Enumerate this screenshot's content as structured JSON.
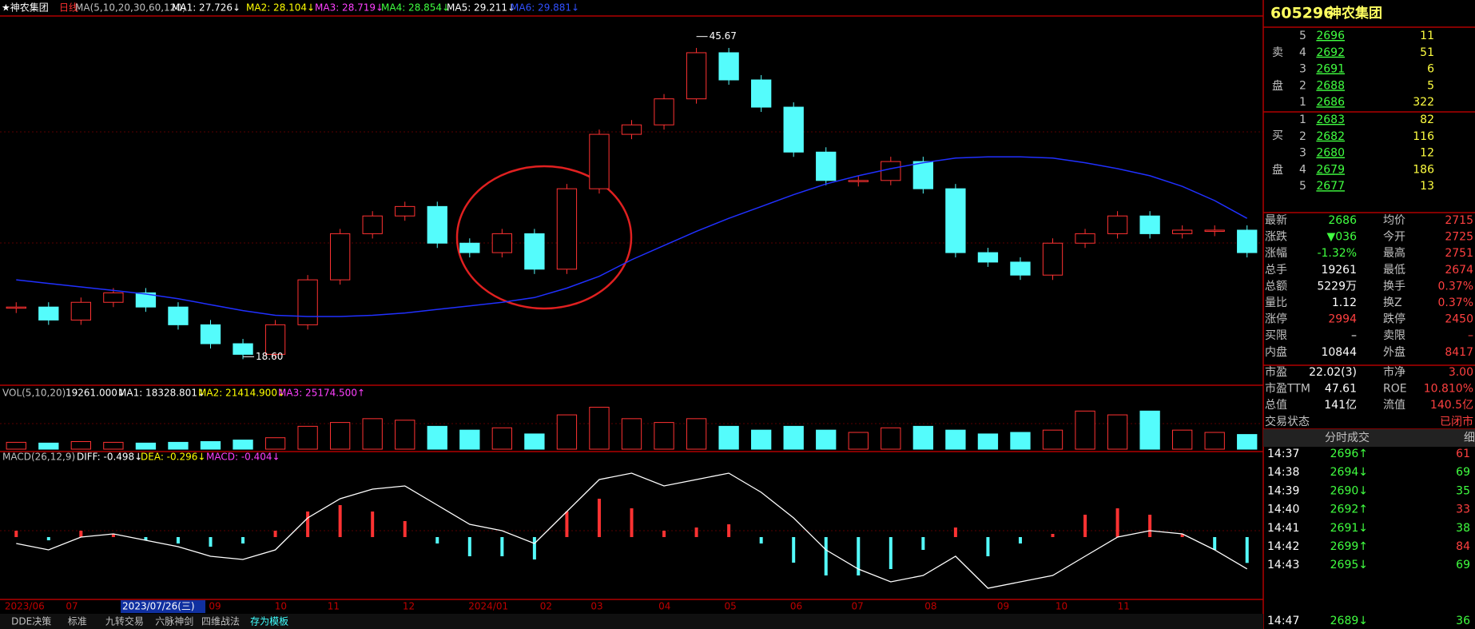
{
  "header": {
    "title": "★神农集团",
    "period": "日线",
    "ma_items": [
      {
        "text": "MA(5,10,20,30,60,120)",
        "color": "#c0c0c0"
      },
      {
        "text": "MA1: 27.726↓",
        "color": "#ffffff"
      },
      {
        "text": "MA2: 28.104↓",
        "color": "#ffff00"
      },
      {
        "text": "MA3: 28.719↓",
        "color": "#ff40ff"
      },
      {
        "text": "MA4: 28.854↓",
        "color": "#40ff40"
      },
      {
        "text": "MA5: 29.211↓",
        "color": "#ffffff"
      },
      {
        "text": "MA6: 29.881↓",
        "color": "#3050ff"
      }
    ]
  },
  "chart_data": [
    {
      "type": "candlestick",
      "up_color": "#ff3232",
      "down_color": "#54fcfc",
      "values": [
        22.8,
        21.7,
        23.2,
        24.0,
        22.8,
        21.3,
        19.7,
        18.8,
        21.3,
        25.1,
        29.0,
        30.5,
        31.3,
        28.2,
        27.4,
        29.0,
        26.0,
        32.8,
        37.4,
        38.2,
        40.4,
        44.3,
        42.0,
        39.7,
        35.9,
        33.5,
        33.5,
        35.1,
        32.8,
        27.4,
        26.6,
        25.5,
        28.2,
        29.0,
        30.5,
        29.0,
        29.3,
        29.3,
        27.4
      ],
      "series": [
        {
          "name": "MA6",
          "color": "#2030ff",
          "values": [
            25.1,
            24.8,
            24.5,
            24.2,
            23.9,
            23.5,
            23.0,
            22.5,
            22.1,
            22.0,
            22.0,
            22.1,
            22.3,
            22.6,
            22.9,
            23.2,
            23.6,
            24.4,
            25.4,
            26.8,
            28.0,
            29.2,
            30.3,
            31.3,
            32.3,
            33.2,
            33.9,
            34.5,
            35.0,
            35.4,
            35.5,
            35.5,
            35.4,
            35.0,
            34.5,
            33.9,
            33.0,
            31.8,
            30.3
          ]
        }
      ],
      "ylim": [
        17,
        47
      ],
      "annotations": [
        {
          "label": "45.67",
          "value": 45.67
        },
        {
          "label": "18.60",
          "value": 18.6
        }
      ],
      "date_labels": [
        "2023/06",
        "07",
        "2023/07/26(三)",
        "09",
        "10",
        "11",
        "12",
        "2024/01",
        "02",
        "03",
        "04",
        "05",
        "06",
        "07",
        "08",
        "09",
        "10",
        "11"
      ]
    },
    {
      "type": "bar",
      "title": "VOL(5,10,20)",
      "legend": [
        {
          "text": "19261.000↓",
          "color": "#ffffff"
        },
        {
          "text": "MA1: 18328.801↓",
          "color": "#ffffff"
        },
        {
          "text": "MA2: 21414.900↓",
          "color": "#ffff00"
        },
        {
          "text": "MA3: 25174.500↑",
          "color": "#ff40ff"
        }
      ],
      "values": [
        9000,
        8000,
        10000,
        9000,
        8000,
        9000,
        10000,
        12000,
        15000,
        30000,
        35000,
        40000,
        38000,
        30000,
        25000,
        28000,
        20000,
        45000,
        55000,
        40000,
        35000,
        40000,
        30000,
        25000,
        30000,
        25000,
        22000,
        28000,
        30000,
        25000,
        20000,
        22000,
        25000,
        50000,
        45000,
        50000,
        25000,
        22000,
        19261
      ],
      "ylim": [
        0,
        65000
      ]
    },
    {
      "type": "macd",
      "title": "MACD(26,12,9)",
      "legend": [
        {
          "text": "DIFF: -0.498↓",
          "color": "#ffffff"
        },
        {
          "text": "DEA: -0.296↓",
          "color": "#ffff00"
        },
        {
          "text": "MACD: -0.404↓",
          "color": "#ff40ff"
        }
      ],
      "values": [
        0.1,
        -0.05,
        0.1,
        0.05,
        -0.05,
        -0.1,
        -0.15,
        -0.1,
        0.1,
        0.4,
        0.5,
        0.4,
        0.25,
        -0.1,
        -0.3,
        -0.3,
        -0.35,
        0.4,
        0.6,
        0.45,
        0.1,
        0.15,
        0.2,
        -0.1,
        -0.4,
        -0.6,
        -0.6,
        -0.5,
        -0.2,
        0.15,
        -0.3,
        -0.1,
        0.05,
        0.35,
        0.45,
        0.35,
        0.05,
        -0.2,
        -0.404
      ],
      "series": [
        {
          "name": "DIFF",
          "color": "#ffffff",
          "values": [
            -0.1,
            -0.2,
            0.0,
            0.05,
            -0.05,
            -0.15,
            -0.3,
            -0.35,
            -0.2,
            0.3,
            0.6,
            0.75,
            0.8,
            0.5,
            0.2,
            0.1,
            -0.1,
            0.4,
            0.9,
            1.0,
            0.8,
            0.9,
            1.0,
            0.7,
            0.3,
            -0.2,
            -0.5,
            -0.7,
            -0.6,
            -0.3,
            -0.8,
            -0.7,
            -0.6,
            -0.3,
            0.0,
            0.1,
            0.05,
            -0.2,
            -0.498
          ]
        }
      ],
      "ylim": [
        -0.95,
        1.15
      ]
    }
  ],
  "tabs": [
    "DDE决策",
    "标准",
    "九转交易",
    "六脉神剑",
    "四维战法",
    "存为模板"
  ],
  "quote": {
    "code": "605296",
    "name": "神农集团",
    "sell_label": [
      "卖",
      "盘"
    ],
    "buy_label": [
      "买",
      "盘"
    ],
    "sell": [
      [
        "5",
        "2696",
        "11"
      ],
      [
        "4",
        "2692",
        "51"
      ],
      [
        "3",
        "2691",
        "6"
      ],
      [
        "2",
        "2688",
        "5"
      ],
      [
        "1",
        "2686",
        "322"
      ]
    ],
    "buy": [
      [
        "1",
        "2683",
        "82"
      ],
      [
        "2",
        "2682",
        "116"
      ],
      [
        "3",
        "2680",
        "12"
      ],
      [
        "4",
        "2679",
        "186"
      ],
      [
        "5",
        "2677",
        "13"
      ]
    ],
    "stats": [
      [
        "最新",
        "2686",
        "均价",
        "2715"
      ],
      [
        "涨跌",
        "▼036",
        "今开",
        "2725"
      ],
      [
        "涨幅",
        "-1.32%",
        "最高",
        "2751"
      ],
      [
        "总手",
        "19261",
        "最低",
        "2674"
      ],
      [
        "总额",
        "5229万",
        "换手",
        "0.37%"
      ],
      [
        "量比",
        "1.12",
        "换Z",
        "0.37%"
      ],
      [
        "涨停",
        "2994",
        "跌停",
        "2450"
      ],
      [
        "买限",
        "–",
        "卖限",
        "–"
      ],
      [
        "内盘",
        "10844",
        "外盘",
        "8417"
      ]
    ],
    "fundamentals": [
      [
        "市盈",
        "22.02(3)",
        "市净",
        "3.00"
      ],
      [
        "市盈TTM",
        "47.61",
        "ROE",
        "10.810%"
      ],
      [
        "总值",
        "141亿",
        "流值",
        "140.5亿"
      ],
      [
        "交易状态",
        "",
        "",
        "已闭市"
      ]
    ],
    "trades_title": "分时成交",
    "trades_detail": "细",
    "trades": [
      [
        "14:37",
        "2696↑",
        "61"
      ],
      [
        "14:38",
        "2694↓",
        "69"
      ],
      [
        "14:39",
        "2690↓",
        "35"
      ],
      [
        "14:40",
        "2692↑",
        "33"
      ],
      [
        "14:41",
        "2691↓",
        "38"
      ],
      [
        "14:42",
        "2699↑",
        "84"
      ],
      [
        "14:43",
        "2695↓",
        "69"
      ],
      [
        "14:47",
        "2689↓",
        "36"
      ]
    ]
  }
}
